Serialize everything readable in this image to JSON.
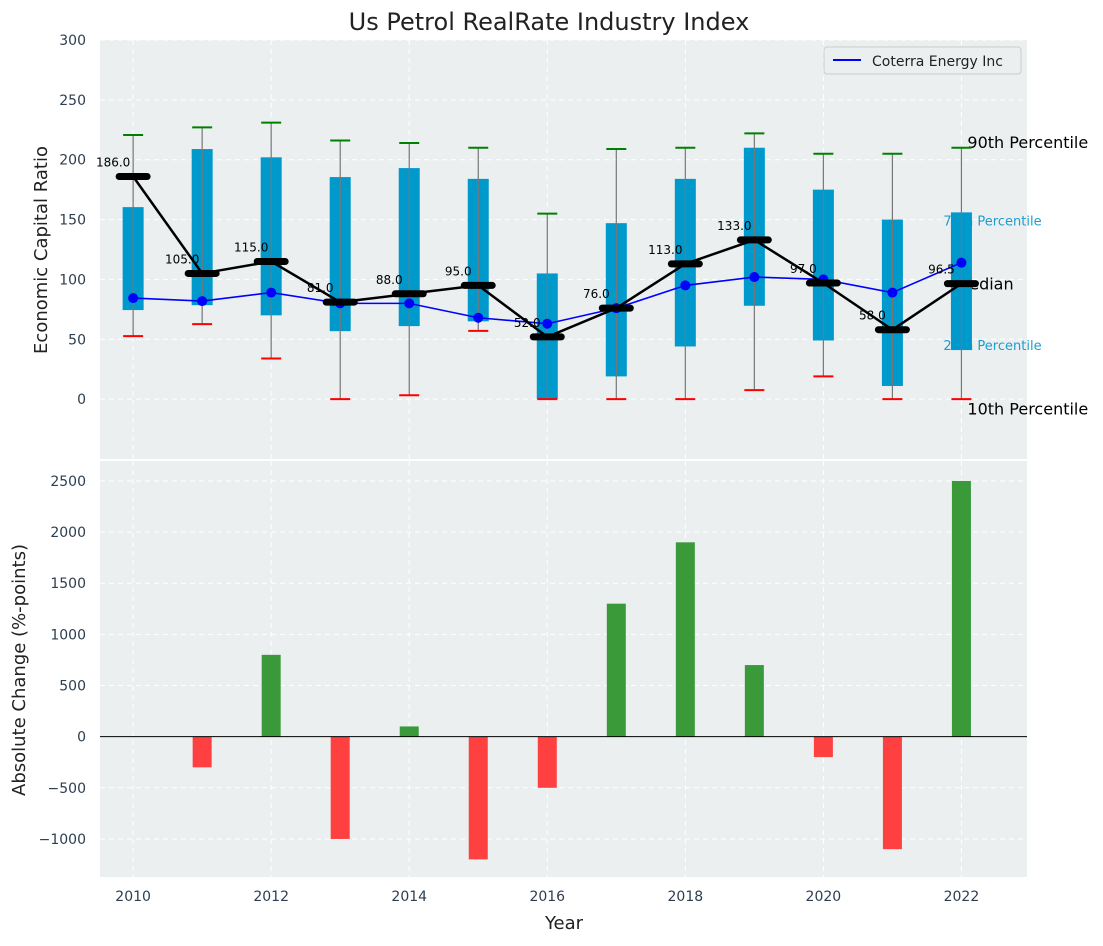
{
  "chart_data": [
    {
      "type": "bar",
      "subtype": "box-percentile",
      "title": "Us Petrol RealRate Industry Index",
      "xlabel": "",
      "ylabel": "Economic Capital Ratio",
      "ylim": [
        -50,
        300
      ],
      "xlim": [
        2009.52,
        2022.95
      ],
      "yticks": [
        0,
        50,
        100,
        150,
        200,
        250,
        300
      ],
      "grid": true,
      "legend": {
        "placement": "top-right",
        "entries": [
          "Coterra Energy Inc"
        ]
      },
      "x": [
        2010,
        2011,
        2012,
        2013,
        2014,
        2015,
        2016,
        2017,
        2018,
        2019,
        2020,
        2021,
        2022
      ],
      "p10": [
        52.6,
        62.7,
        34,
        0,
        3.3,
        57,
        0,
        0,
        0,
        7.5,
        19,
        0,
        0
      ],
      "p25": [
        74.4,
        78.5,
        70,
        56.8,
        61,
        65,
        0,
        19,
        44,
        78,
        49,
        11,
        41
      ],
      "median": [
        186,
        105,
        115,
        81,
        88,
        95,
        52,
        76,
        113,
        133,
        97,
        58,
        96.5
      ],
      "median_labels": [
        "186.0",
        "105.0",
        "115.0",
        "81.0",
        "88.0",
        "95.0",
        "52.0",
        "76.0",
        "113.0",
        "133.0",
        "97.0",
        "58.0",
        "96.5"
      ],
      "p75": [
        160.4,
        208.9,
        202,
        185.5,
        193,
        184,
        105,
        147,
        184,
        210,
        175,
        150,
        156
      ],
      "p90": [
        220.6,
        227,
        231,
        216,
        214,
        210,
        155,
        209,
        210,
        222,
        205,
        205,
        210
      ],
      "company_series": {
        "name": "Coterra Energy Inc",
        "values": [
          84.4,
          81.9,
          89,
          80,
          80,
          68,
          63,
          76,
          95,
          102,
          100,
          89,
          114
        ]
      },
      "annotations": [
        {
          "text": "90th Percentile",
          "value": 215
        },
        {
          "text": "75th Percentile",
          "value": 150
        },
        {
          "text": "Median",
          "value": 96.5
        },
        {
          "text": "25th Percentile",
          "value": 46
        },
        {
          "text": "10th Percentile",
          "value": -8
        }
      ]
    },
    {
      "type": "bar",
      "xlabel": "Year",
      "ylabel": "Absolute Change (%-points)",
      "ylim": [
        -1372,
        2695
      ],
      "yticks": [
        -1000,
        -500,
        0,
        500,
        1000,
        1500,
        2000,
        2500
      ],
      "ytick_labels": [
        "−1000",
        "−500",
        "0",
        "500",
        "1000",
        "1500",
        "2000",
        "2500"
      ],
      "xticks": [
        2010,
        2012,
        2014,
        2016,
        2018,
        2020,
        2022
      ],
      "grid": true,
      "x": [
        2010,
        2011,
        2012,
        2013,
        2014,
        2015,
        2016,
        2017,
        2018,
        2019,
        2020,
        2021,
        2022
      ],
      "values": [
        0,
        -300,
        800,
        -1000,
        100,
        -1200,
        -500,
        1300,
        1900,
        700,
        -200,
        -1100,
        2500
      ]
    }
  ],
  "colors": {
    "box": "#0099cc",
    "company": "#0000ff",
    "median": "#000000",
    "p90": "#008000",
    "p10": "#ff0000",
    "pos": "#3a9a3a",
    "neg": "#ff4040",
    "bg": "#ebeff0"
  }
}
